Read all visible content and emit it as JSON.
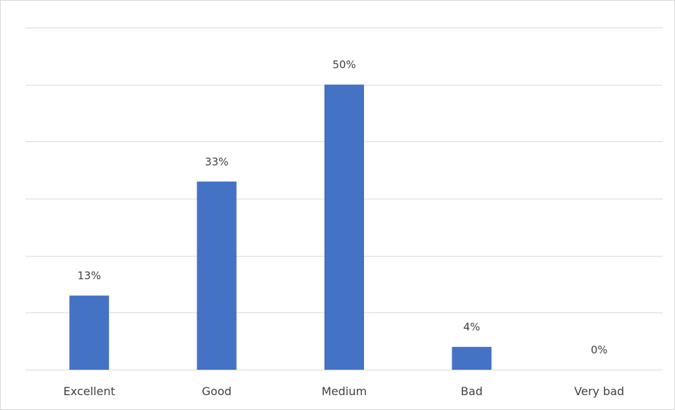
{
  "chart_data": {
    "type": "bar",
    "categories": [
      "Excellent",
      "Good",
      "Medium",
      "Bad",
      "Very bad"
    ],
    "values": [
      13,
      33,
      50,
      4,
      0
    ],
    "data_labels": [
      "13%",
      "33%",
      "50%",
      "4%",
      "0%"
    ],
    "ylim": [
      0,
      60
    ],
    "ytick_step": 10,
    "grid": true,
    "legend": "none",
    "title": "",
    "xlabel": "",
    "ylabel": "",
    "colors": {
      "bar": "#4472c4",
      "grid": "#d9d9d9",
      "text": "#404040",
      "background": "#ffffff"
    }
  }
}
